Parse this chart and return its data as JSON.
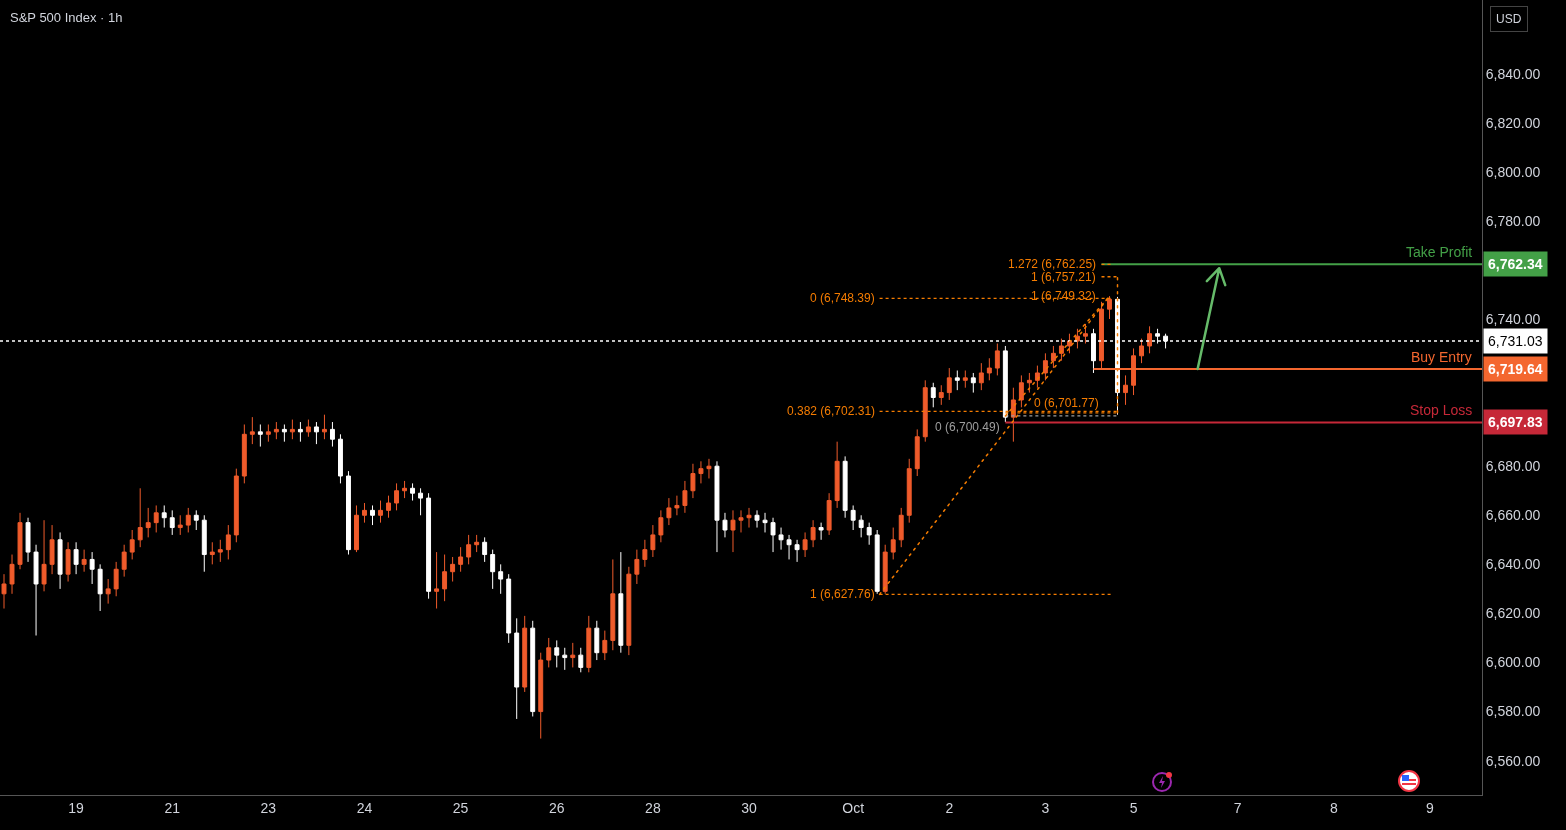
{
  "chart_data": {
    "type": "candlestick",
    "title": "S&P 500 Index · 1h",
    "categories": [
      null,
      null,
      null,
      null,
      null,
      null,
      null,
      null,
      null,
      "19",
      null,
      null,
      null,
      null,
      null,
      null,
      null,
      null,
      null,
      null,
      null,
      "21",
      null,
      null,
      null,
      null,
      null,
      null,
      null,
      null,
      null,
      null,
      null,
      "23",
      null,
      null,
      null,
      null,
      null,
      null,
      null,
      null,
      null,
      null,
      null,
      "24",
      null,
      null,
      null,
      null,
      null,
      null,
      null,
      null,
      null,
      null,
      null,
      "25",
      null,
      null,
      null,
      null,
      null,
      null,
      null,
      null,
      null,
      null,
      null,
      "26",
      null,
      null,
      null,
      null,
      null,
      null,
      null,
      null,
      null,
      null,
      null,
      "28",
      null,
      null,
      null,
      null,
      null,
      null,
      null,
      null,
      null,
      null,
      null,
      "30",
      null,
      null,
      null,
      null,
      null,
      null,
      null,
      null,
      null,
      null,
      null,
      null,
      "Oct",
      null,
      null,
      null,
      null,
      null,
      null,
      null,
      null,
      null,
      null,
      null,
      "2",
      null,
      null,
      null,
      null,
      null,
      null,
      null,
      null,
      null,
      null,
      null,
      "3",
      null,
      null,
      null,
      null,
      null,
      null,
      null,
      null,
      null,
      null,
      "5",
      null,
      null,
      null,
      null,
      null,
      null,
      null,
      null,
      null,
      null,
      null,
      null,
      "7",
      null,
      null,
      null,
      null,
      null,
      null,
      null,
      null,
      null,
      null,
      null,
      "8",
      null,
      null,
      null,
      null,
      null,
      null,
      null,
      null,
      null,
      null,
      null,
      "9",
      null,
      null,
      null,
      null,
      null,
      null
    ],
    "ohlc": [
      [
        6628,
        6636,
        6622,
        6632
      ],
      [
        6632,
        6644,
        6628,
        6640
      ],
      [
        6640,
        6661,
        6638,
        6657
      ],
      [
        6657,
        6659,
        6641,
        6645
      ],
      [
        6645,
        6648,
        6611,
        6632
      ],
      [
        6632,
        6658,
        6629,
        6640
      ],
      [
        6640,
        6656,
        6636,
        6650
      ],
      [
        6650,
        6653,
        6630,
        6636
      ],
      [
        6636,
        6649,
        6633,
        6646
      ],
      [
        6646,
        6649,
        6636,
        6640
      ],
      [
        6640,
        6646,
        6637,
        6642
      ],
      [
        6642,
        6645,
        6632,
        6638
      ],
      [
        6638,
        6640,
        6621,
        6628
      ],
      [
        6628,
        6634,
        6624,
        6630
      ],
      [
        6630,
        6641,
        6627,
        6638
      ],
      [
        6638,
        6648,
        6635,
        6645
      ],
      [
        6645,
        6654,
        6642,
        6650
      ],
      [
        6650,
        6671,
        6647,
        6655
      ],
      [
        6655,
        6663,
        6651,
        6657
      ],
      [
        6657,
        6664,
        6653,
        6661
      ],
      [
        6661,
        6664,
        6655,
        6659
      ],
      [
        6659,
        6662,
        6652,
        6655
      ],
      [
        6655,
        6660,
        6652,
        6656
      ],
      [
        6656,
        6663,
        6653,
        6660
      ],
      [
        6660,
        6662,
        6654,
        6658
      ],
      [
        6658,
        6660,
        6637,
        6644
      ],
      [
        6644,
        6649,
        6640,
        6645
      ],
      [
        6645,
        6650,
        6641,
        6646
      ],
      [
        6646,
        6656,
        6642,
        6652
      ],
      [
        6652,
        6679,
        6649,
        6676
      ],
      [
        6676,
        6697,
        6673,
        6693
      ],
      [
        6693,
        6700,
        6689,
        6694
      ],
      [
        6694,
        6697,
        6688,
        6693
      ],
      [
        6693,
        6697,
        6690,
        6694
      ],
      [
        6694,
        6698,
        6691,
        6695
      ],
      [
        6695,
        6697,
        6690,
        6694
      ],
      [
        6694,
        6699,
        6691,
        6695
      ],
      [
        6695,
        6698,
        6690,
        6694
      ],
      [
        6694,
        6699,
        6692,
        6696
      ],
      [
        6696,
        6698,
        6689,
        6694
      ],
      [
        6694,
        6701,
        6691,
        6695
      ],
      [
        6695,
        6698,
        6688,
        6691
      ],
      [
        6691,
        6693,
        6673,
        6676
      ],
      [
        6676,
        6678,
        6644,
        6646
      ],
      [
        6646,
        6664,
        6645,
        6660
      ],
      [
        6660,
        6665,
        6657,
        6662
      ],
      [
        6662,
        6664,
        6656,
        6660
      ],
      [
        6660,
        6666,
        6657,
        6662
      ],
      [
        6662,
        6668,
        6659,
        6665
      ],
      [
        6665,
        6673,
        6662,
        6670
      ],
      [
        6670,
        6674,
        6667,
        6671
      ],
      [
        6671,
        6673,
        6666,
        6669
      ],
      [
        6669,
        6671,
        6660,
        6667
      ],
      [
        6667,
        6669,
        6626,
        6629
      ],
      [
        6629,
        6645,
        6622,
        6630
      ],
      [
        6630,
        6644,
        6625,
        6637
      ],
      [
        6637,
        6643,
        6633,
        6640
      ],
      [
        6640,
        6647,
        6637,
        6643
      ],
      [
        6643,
        6652,
        6640,
        6648
      ],
      [
        6648,
        6652,
        6645,
        6649
      ],
      [
        6649,
        6651,
        6641,
        6644
      ],
      [
        6644,
        6646,
        6630,
        6637
      ],
      [
        6637,
        6640,
        6628,
        6634
      ],
      [
        6634,
        6636,
        6608,
        6612
      ],
      [
        6612,
        6618,
        6577,
        6590
      ],
      [
        6590,
        6619,
        6588,
        6614
      ],
      [
        6614,
        6617,
        6578,
        6580
      ],
      [
        6580,
        6604,
        6569,
        6601
      ],
      [
        6601,
        6610,
        6598,
        6606
      ],
      [
        6606,
        6609,
        6598,
        6603
      ],
      [
        6603,
        6606,
        6597,
        6602
      ],
      [
        6602,
        6608,
        6598,
        6603
      ],
      [
        6603,
        6606,
        6596,
        6598
      ],
      [
        6598,
        6619,
        6596,
        6614
      ],
      [
        6614,
        6617,
        6601,
        6604
      ],
      [
        6604,
        6613,
        6601,
        6609
      ],
      [
        6609,
        6642,
        6605,
        6628
      ],
      [
        6628,
        6645,
        6604,
        6607
      ],
      [
        6607,
        6639,
        6603,
        6636
      ],
      [
        6636,
        6646,
        6632,
        6642
      ],
      [
        6642,
        6650,
        6639,
        6646
      ],
      [
        6646,
        6656,
        6643,
        6652
      ],
      [
        6652,
        6662,
        6649,
        6659
      ],
      [
        6659,
        6667,
        6656,
        6663
      ],
      [
        6663,
        6668,
        6660,
        6664
      ],
      [
        6664,
        6674,
        6661,
        6670
      ],
      [
        6670,
        6681,
        6667,
        6677
      ],
      [
        6677,
        6682,
        6673,
        6679
      ],
      [
        6679,
        6683,
        6675,
        6680
      ],
      [
        6680,
        6682,
        6645,
        6658
      ],
      [
        6658,
        6661,
        6651,
        6654
      ],
      [
        6654,
        6662,
        6645,
        6658
      ],
      [
        6658,
        6662,
        6653,
        6659
      ],
      [
        6659,
        6663,
        6655,
        6660
      ],
      [
        6660,
        6662,
        6655,
        6658
      ],
      [
        6658,
        6661,
        6653,
        6657
      ],
      [
        6657,
        6659,
        6645,
        6652
      ],
      [
        6652,
        6655,
        6646,
        6650
      ],
      [
        6650,
        6652,
        6642,
        6648
      ],
      [
        6648,
        6650,
        6641,
        6646
      ],
      [
        6646,
        6653,
        6643,
        6650
      ],
      [
        6650,
        6658,
        6647,
        6655
      ],
      [
        6655,
        6657,
        6650,
        6654
      ],
      [
        6654,
        6669,
        6652,
        6666
      ],
      [
        6666,
        6690,
        6663,
        6682
      ],
      [
        6682,
        6684,
        6659,
        6662
      ],
      [
        6662,
        6664,
        6654,
        6658
      ],
      [
        6658,
        6660,
        6651,
        6655
      ],
      [
        6655,
        6657,
        6648,
        6652
      ],
      [
        6652,
        6654,
        6628,
        6629
      ],
      [
        6629,
        6648,
        6628,
        6645
      ],
      [
        6645,
        6655,
        6642,
        6650
      ],
      [
        6650,
        6663,
        6647,
        6660
      ],
      [
        6660,
        6683,
        6657,
        6679
      ],
      [
        6679,
        6695,
        6676,
        6692
      ],
      [
        6692,
        6715,
        6690,
        6712
      ],
      [
        6712,
        6714,
        6704,
        6708
      ],
      [
        6708,
        6713,
        6705,
        6710
      ],
      [
        6710,
        6720,
        6707,
        6716
      ],
      [
        6716,
        6719,
        6711,
        6715
      ],
      [
        6715,
        6719,
        6712,
        6716
      ],
      [
        6716,
        6718,
        6710,
        6714
      ],
      [
        6714,
        6722,
        6711,
        6718
      ],
      [
        6718,
        6724,
        6715,
        6720
      ],
      [
        6720,
        6730,
        6717,
        6727
      ],
      [
        6727,
        6729,
        6698,
        6700
      ],
      [
        6700,
        6712,
        6690,
        6707
      ],
      [
        6707,
        6717,
        6704,
        6714
      ],
      [
        6714,
        6718,
        6710,
        6715
      ],
      [
        6715,
        6721,
        6712,
        6718
      ],
      [
        6718,
        6726,
        6715,
        6723
      ],
      [
        6723,
        6729,
        6720,
        6726
      ],
      [
        6726,
        6732,
        6723,
        6729
      ],
      [
        6729,
        6734,
        6726,
        6731
      ],
      [
        6731,
        6736,
        6728,
        6733
      ],
      [
        6733,
        6738,
        6730,
        6734
      ],
      [
        6734,
        6736,
        6718,
        6723
      ],
      [
        6723,
        6747,
        6720,
        6744
      ],
      [
        6744,
        6749.32,
        6740,
        6748
      ],
      [
        6748,
        6749,
        6701,
        6710
      ],
      [
        6710,
        6717,
        6705,
        6713
      ],
      [
        6713,
        6728,
        6709,
        6725
      ],
      [
        6725,
        6732,
        6722,
        6729
      ],
      [
        6729,
        6737,
        6726,
        6734
      ],
      [
        6734,
        6736,
        6730,
        6733
      ],
      [
        6733,
        6734,
        6728,
        6731
      ],
      null,
      null,
      null,
      null,
      null,
      null,
      null,
      null,
      null,
      null,
      null,
      null,
      null,
      null,
      null,
      null,
      null,
      null,
      null,
      null,
      null,
      null,
      null,
      null,
      null,
      null,
      null,
      null,
      null,
      null,
      null,
      null,
      null,
      null,
      null,
      null,
      null,
      null,
      null
    ],
    "colors": [
      "#ef5b2b",
      "#ef5b2b",
      "#ef5b2b",
      "#ffffff",
      "#ffffff",
      "#ef5b2b",
      "#ef5b2b",
      "#ffffff",
      "#ef5b2b",
      "#ffffff",
      "#ef5b2b",
      "#ffffff",
      "#ffffff",
      "#ef5b2b",
      "#ef5b2b",
      "#ef5b2b",
      "#ef5b2b",
      "#ef5b2b",
      "#ef5b2b",
      "#ef5b2b",
      "#ffffff",
      "#ffffff",
      "#ef5b2b",
      "#ef5b2b",
      "#ffffff",
      "#ffffff",
      "#ef5b2b",
      "#ef5b2b",
      "#ef5b2b",
      "#ef5b2b",
      "#ef5b2b",
      "#ef5b2b",
      "#ffffff",
      "#ef5b2b",
      "#ef5b2b",
      "#ffffff",
      "#ef5b2b",
      "#ffffff",
      "#ef5b2b",
      "#ffffff",
      "#ef5b2b",
      "#ffffff",
      "#ffffff",
      "#ffffff",
      "#ef5b2b",
      "#ef5b2b",
      "#ffffff",
      "#ef5b2b",
      "#ef5b2b",
      "#ef5b2b",
      "#ef5b2b",
      "#ffffff",
      "#ffffff",
      "#ffffff",
      "#ef5b2b",
      "#ef5b2b",
      "#ef5b2b",
      "#ef5b2b",
      "#ef5b2b",
      "#ef5b2b",
      "#ffffff",
      "#ffffff",
      "#ffffff",
      "#ffffff",
      "#ffffff",
      "#ef5b2b",
      "#ffffff",
      "#ef5b2b",
      "#ef5b2b",
      "#ffffff",
      "#ffffff",
      "#ef5b2b",
      "#ffffff",
      "#ef5b2b",
      "#ffffff",
      "#ef5b2b",
      "#ef5b2b",
      "#ffffff",
      "#ef5b2b",
      "#ef5b2b",
      "#ef5b2b",
      "#ef5b2b",
      "#ef5b2b",
      "#ef5b2b",
      "#ef5b2b",
      "#ef5b2b",
      "#ef5b2b",
      "#ef5b2b",
      "#ef5b2b",
      "#ffffff",
      "#ffffff",
      "#ef5b2b",
      "#ef5b2b",
      "#ef5b2b",
      "#ffffff",
      "#ffffff",
      "#ffffff",
      "#ffffff",
      "#ffffff",
      "#ffffff",
      "#ef5b2b",
      "#ef5b2b",
      "#ffffff",
      "#ef5b2b",
      "#ef5b2b",
      "#ffffff",
      "#ffffff",
      "#ffffff",
      "#ffffff",
      "#ffffff",
      "#ef5b2b",
      "#ef5b2b",
      "#ef5b2b",
      "#ef5b2b",
      "#ef5b2b",
      "#ef5b2b",
      "#ffffff",
      "#ef5b2b",
      "#ef5b2b",
      "#ffffff",
      "#ef5b2b",
      "#ffffff",
      "#ef5b2b",
      "#ef5b2b",
      "#ef5b2b",
      "#ffffff",
      "#ef5b2b",
      "#ef5b2b",
      "#ef5b2b",
      "#ef5b2b",
      "#ef5b2b",
      "#ef5b2b",
      "#ef5b2b",
      "#ef5b2b",
      "#ef5b2b",
      "#ef5b2b",
      "#ffffff",
      "#ef5b2b",
      "#ef5b2b",
      "#ffffff",
      "#ef5b2b",
      "#ef5b2b",
      "#ef5b2b",
      "#ef5b2b",
      "#ffffff",
      "#ffffff",
      null,
      null,
      null,
      null,
      null,
      null,
      null,
      null,
      null,
      null,
      null,
      null,
      null,
      null,
      null,
      null,
      null,
      null,
      null,
      null,
      null,
      null,
      null,
      null,
      null,
      null,
      null,
      null,
      null,
      null,
      null,
      null,
      null,
      null,
      null,
      null,
      null,
      null,
      null
    ],
    "ref_lines": [
      {
        "axis": "y",
        "value": 6731.03,
        "color": "#ffffff",
        "line_style": "dotted"
      },
      {
        "axis": "y",
        "value": 6762.34,
        "label": "Take Profit",
        "color": "#43a047"
      },
      {
        "axis": "y",
        "value": 6719.64,
        "label": "Buy Entry",
        "color": "#f4672f"
      },
      {
        "axis": "y",
        "value": 6697.83,
        "label": "Stop Loss",
        "color": "#c62838"
      },
      {
        "axis": "y",
        "value": 6762.25,
        "label": "1.272 (6,762.25)",
        "color": "#f57c00",
        "line_style": "dotted"
      },
      {
        "axis": "y",
        "value": 6757.21,
        "label": "1 (6,757.21)",
        "color": "#f57c00",
        "line_style": "dotted"
      },
      {
        "axis": "y",
        "value": 6748.39,
        "label": "0 (6,748.39)",
        "color": "#f57c00",
        "line_style": "dotted"
      },
      {
        "axis": "y",
        "value": 6702.31,
        "label": "0.382 (6,702.31)",
        "color": "#f57c00",
        "line_style": "dotted"
      },
      {
        "axis": "y",
        "value": 6701.77,
        "label": "0 (6,701.77)",
        "color": "#f57c00",
        "line_style": "dotted"
      },
      {
        "axis": "y",
        "value": 6700.49,
        "label": "0 (6,700.49)",
        "color": "#9e9e9e",
        "line_style": "dotted"
      },
      {
        "axis": "y",
        "value": 6627.76,
        "label": "1 (6,627.76)",
        "color": "#f57c00",
        "line_style": "dotted"
      }
    ],
    "annotations": [
      "USD",
      {
        "text": "1 (6,749.32)",
        "y": 6749.32
      }
    ],
    "ylim": [
      6546,
      6870
    ],
    "yticks": [
      {
        "value": 6560,
        "label": "6,560.00"
      },
      {
        "value": 6580,
        "label": "6,580.00"
      },
      {
        "value": 6600,
        "label": "6,600.00"
      },
      {
        "value": 6620,
        "label": "6,620.00"
      },
      {
        "value": 6640,
        "label": "6,640.00"
      },
      {
        "value": 6660,
        "label": "6,660.00"
      },
      {
        "value": 6680,
        "label": "6,680.00"
      },
      {
        "value": 6697.83,
        "label": "6,697.83"
      },
      {
        "value": 6719.64,
        "label": "6,719.64"
      },
      {
        "value": 6731.03,
        "label": "6,731.03"
      },
      {
        "value": 6740,
        "label": "6,740.00"
      },
      {
        "value": 6762.34,
        "label": "6,762.34"
      },
      {
        "value": 6780,
        "label": "6,780.00"
      },
      {
        "value": 6800,
        "label": "6,800.00"
      },
      {
        "value": 6820,
        "label": "6,820.00"
      },
      {
        "value": 6840,
        "label": "6,840.00"
      }
    ]
  }
}
